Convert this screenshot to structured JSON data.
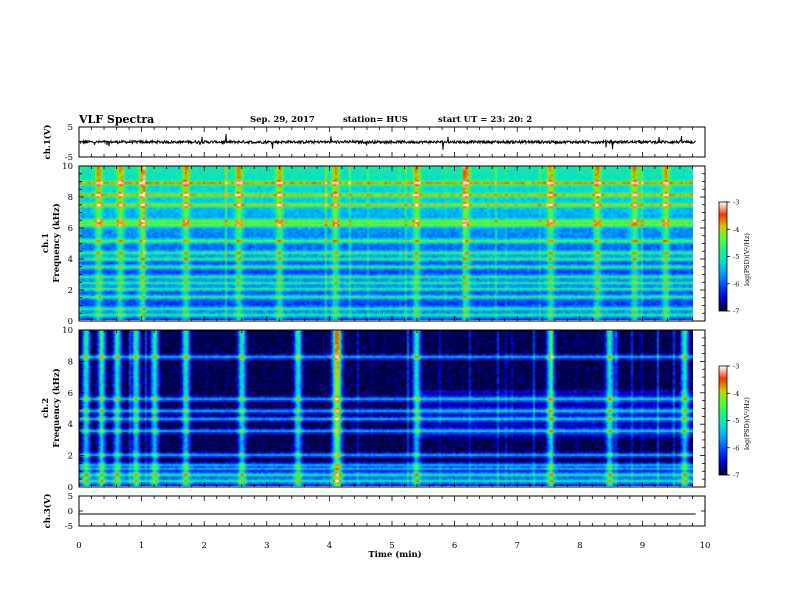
{
  "header": {
    "title": "VLF Spectra",
    "date": "Sep. 29, 2017",
    "station": "station= HUS",
    "start": "start  UT =   23: 20: 2"
  },
  "chart_data": [
    {
      "type": "line",
      "panel": "ch1",
      "ylabel": "ch.1(V)",
      "ylim": [
        -5,
        5
      ],
      "y_ticks": [
        "5",
        "-5"
      ],
      "x_range_min": [
        0,
        9.85
      ],
      "baseline_v": 0
    },
    {
      "type": "heatmap",
      "panel": "ch1-spectrogram",
      "ylabel": "ch.1\nFrequency (kHz)",
      "ylim_khz": [
        0,
        10
      ],
      "y_ticks": [
        "0",
        "2",
        "4",
        "6",
        "8",
        "10"
      ],
      "x_range_min": [
        0,
        9.85
      ],
      "colorbar": {
        "label": "log(PSD)(V²/Hz)",
        "range": [
          -7,
          -3
        ],
        "ticks": [
          "-3",
          "-4",
          "-5",
          "-6",
          "-7"
        ]
      },
      "horizontal_lines_khz": [
        0.3,
        0.6,
        1.4,
        2.0,
        2.4,
        2.8,
        3.4,
        3.9,
        4.3,
        5.1,
        6.2,
        6.5,
        7.5,
        8.2,
        9.0
      ],
      "burst_times_min": [
        0.3,
        0.65,
        1.0,
        1.7,
        2.55,
        3.2,
        4.1,
        5.4,
        6.2,
        7.55,
        8.3,
        8.9,
        9.4
      ]
    },
    {
      "type": "heatmap",
      "panel": "ch2-spectrogram",
      "ylabel": "ch.2\nFrequency (kHz)",
      "ylim_khz": [
        0,
        10
      ],
      "y_ticks": [
        "0",
        "2",
        "4",
        "6",
        "8",
        "10"
      ],
      "x_range_min": [
        0,
        9.85
      ],
      "colorbar": {
        "label": "log(PSD)(V²/Hz)",
        "range": [
          -7,
          -3
        ],
        "ticks": [
          "-3",
          "-4",
          "-5",
          "-6",
          "-7"
        ]
      },
      "horizontal_lines_khz": [
        0.3,
        0.6,
        1.0,
        1.3,
        2.0,
        3.5,
        4.3,
        4.8,
        5.6,
        8.3
      ],
      "burst_times_min": [
        0.1,
        0.35,
        0.6,
        0.9,
        1.2,
        1.7,
        2.6,
        3.5,
        4.1,
        4.15,
        5.4,
        7.55,
        8.5,
        9.7
      ]
    },
    {
      "type": "line",
      "panel": "ch3",
      "ylabel": "ch.3(V)",
      "ylim": [
        -5,
        5
      ],
      "y_ticks": [
        "5",
        "0",
        "-5"
      ],
      "x_range_min": [
        0,
        9.85
      ],
      "baseline_v": -1
    }
  ],
  "xaxis": {
    "label": "Time  (min)",
    "range": [
      0,
      10
    ],
    "ticks": [
      "0",
      "1",
      "2",
      "3",
      "4",
      "5",
      "6",
      "7",
      "8",
      "9",
      "10"
    ]
  },
  "colors": {
    "background": "#ffffff",
    "axes": "#000000",
    "colormap": [
      "#000033",
      "#0000cc",
      "#0044ff",
      "#0099ff",
      "#00dddd",
      "#22ee88",
      "#55ff33",
      "#cccc00",
      "#ff3300",
      "#ffffff"
    ]
  }
}
